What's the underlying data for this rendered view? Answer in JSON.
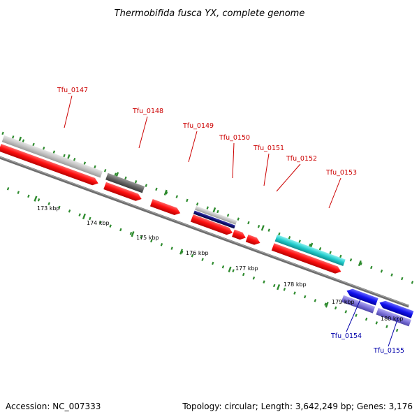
{
  "title": "Thermobifida fusca YX, complete genome",
  "footer": {
    "accession": "Accession: NC_007333",
    "topology": "Topology: circular; Length: 3,642,249 bp; Genes: 3,176"
  },
  "colors": {
    "backbone": "#777777",
    "tick": "#2e8b2e",
    "label_forward": "#cc0000",
    "label_reverse": "#0000aa",
    "gene_red": "#ff1010",
    "gene_lightgray": "#c8c8c8",
    "gene_darkgray": "#6a6a6a",
    "gene_navy": "#141480",
    "gene_cyan": "#22cccc",
    "gene_blue": "#1010ee",
    "gene_violet": "#7a70d8"
  },
  "axis": {
    "ticks": [
      {
        "label": "173 kbp"
      },
      {
        "label": "174 kbp"
      },
      {
        "label": "175 kbp"
      },
      {
        "label": "176 kbp"
      },
      {
        "label": "177 kbp"
      },
      {
        "label": "178 kbp"
      },
      {
        "label": "179 kbp"
      },
      {
        "label": "180 kbp"
      }
    ]
  },
  "gene_labels": [
    {
      "text": "Tfu_0147",
      "strand": "forward"
    },
    {
      "text": "Tfu_0148",
      "strand": "forward"
    },
    {
      "text": "Tfu_0149",
      "strand": "forward"
    },
    {
      "text": "Tfu_0150",
      "strand": "forward"
    },
    {
      "text": "Tfu_0151",
      "strand": "forward"
    },
    {
      "text": "Tfu_0152",
      "strand": "forward"
    },
    {
      "text": "Tfu_0153",
      "strand": "forward"
    },
    {
      "text": "Tfu_0154",
      "strand": "reverse"
    },
    {
      "text": "Tfu_0155",
      "strand": "reverse"
    }
  ]
}
